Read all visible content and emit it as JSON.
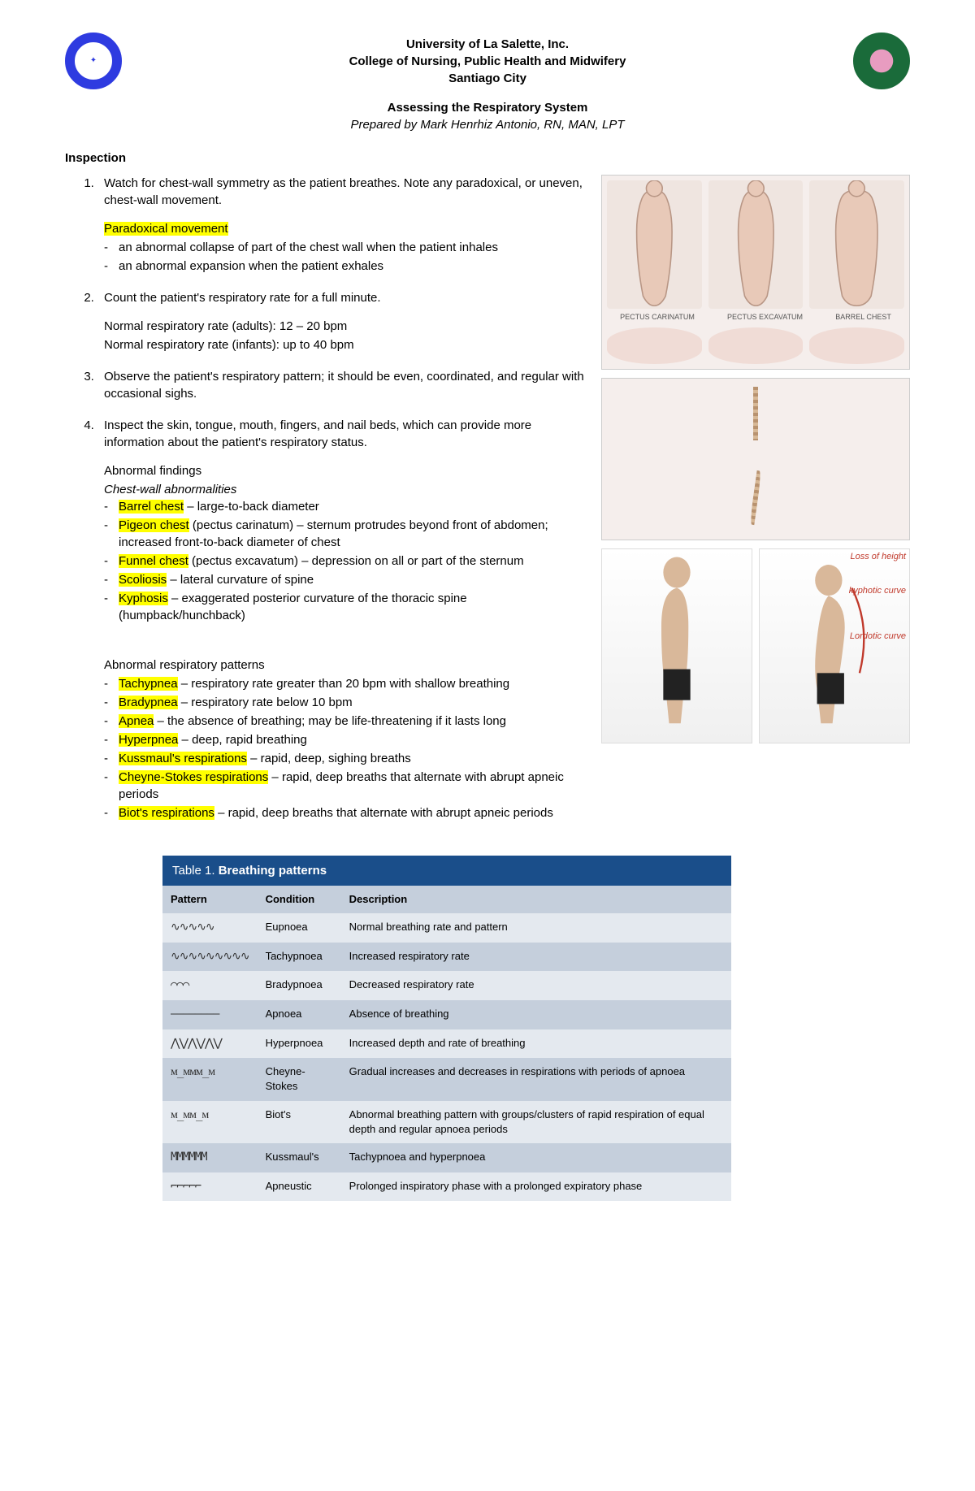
{
  "header": {
    "line1": "University of La Salette, Inc.",
    "line2": "College of Nursing, Public Health and Midwifery",
    "line3": "Santiago City",
    "doc_title": "Assessing the Respiratory System",
    "author": "Prepared by Mark Henrhiz Antonio, RN, MAN, LPT"
  },
  "section_inspection": "Inspection",
  "items": {
    "1": {
      "text": "Watch for chest-wall symmetry as the patient breathes. Note any paradoxical, or uneven, chest-wall movement.",
      "para_hl": "Paradoxical movement",
      "para_b1": "an abnormal collapse of part of the chest wall when the patient inhales",
      "para_b2": "an abnormal  expansion when the patient exhales"
    },
    "2": {
      "text": "Count the patient's respiratory rate for a full minute.",
      "rate1": "Normal respiratory rate (adults): 12 – 20 bpm",
      "rate2": "Normal respiratory rate (infants): up to 40 bpm"
    },
    "3": {
      "text": "Observe the patient's respiratory pattern; it should be even, coordinated, and regular with occasional sighs."
    },
    "4": {
      "text": "Inspect the skin, tongue, mouth, fingers, and nail beds, which can provide more information about the patient's respiratory status.",
      "abn_head": "Abnormal findings",
      "chest_head": "Chest-wall abnormalities",
      "chest": {
        "barrel_hl": "Barrel chest",
        "barrel_t": " – large-to-back diameter",
        "pigeon_hl": "Pigeon chest",
        "pigeon_t": " (pectus carinatum) – sternum protrudes beyond front of abdomen; increased front-to-back diameter of chest",
        "funnel_hl": "Funnel chest",
        "funnel_t": " (pectus excavatum) – depression on all or part of the sternum",
        "scol_hl": "Scoliosis",
        "scol_t": " – lateral curvature of spine",
        "kyph_hl": "Kyphosis",
        "kyph_t": " – exaggerated posterior curvature of the thoracic spine (humpback/hunchback)"
      },
      "resp_head": "Abnormal respiratory patterns",
      "resp": {
        "tachy_hl": "Tachypnea",
        "tachy_t": " – respiratory rate greater than 20 bpm with shallow breathing",
        "brady_hl": "Bradypnea",
        "brady_t": " – respiratory rate below 10 bpm",
        "apnea_hl": "Apnea",
        "apnea_t": " – the absence of breathing; may be life-threatening if it lasts long",
        "hyper_hl": "Hyperpnea",
        "hyper_t": " – deep, rapid breathing",
        "kuss_hl": "Kussmaul's respirations",
        "kuss_t": " – rapid, deep, sighing breaths",
        "cs_hl": "Cheyne-Stokes respirations",
        "cs_t": " – rapid, deep breaths that alternate with abrupt apneic periods",
        "biot_hl": "Biot's respirations",
        "biot_t": " – rapid, deep breaths that alternate with abrupt apneic periods"
      }
    }
  },
  "fig_chest_labels": {
    "a": "PECTUS CARINATUM",
    "b": "PECTUS EXCAVATUM",
    "c": "BARREL CHEST"
  },
  "fig_kyph": {
    "loss": "Loss of height",
    "kyph": "kyphotic curve",
    "lord": "Lordotic curve"
  },
  "table": {
    "title_prefix": "Table 1. ",
    "title_bold": "Breathing patterns",
    "cols": {
      "p": "Pattern",
      "c": "Condition",
      "d": "Description"
    },
    "rows": [
      {
        "wave": "∿∿∿∿∿",
        "cond": "Eupnoea",
        "desc": "Normal breathing rate and pattern"
      },
      {
        "wave": "∿∿∿∿∿∿∿∿∿",
        "cond": "Tachypnoea",
        "desc": "Increased respiratory rate"
      },
      {
        "wave": "⌒⌒⌒",
        "cond": "Bradypnoea",
        "desc": "Decreased respiratory rate"
      },
      {
        "wave": "————————",
        "cond": "Apnoea",
        "desc": "Absence of breathing"
      },
      {
        "wave": "⋀⋁⋀⋁⋀⋁",
        "cond": "Hyperpnoea",
        "desc": "Increased depth and rate of breathing"
      },
      {
        "wave": "ᴍ_ᴍᴍᴍ_ᴍ",
        "cond": "Cheyne-Stokes",
        "desc": "Gradual increases and decreases in respirations with periods of apnoea"
      },
      {
        "wave": "ᴍ_ᴍᴍ_ᴍ",
        "cond": "Biot's",
        "desc": "Abnormal breathing pattern with groups/clusters of rapid respiration of equal depth and regular apnoea periods"
      },
      {
        "wave": "MMMMMM",
        "cond": "Kussmaul's",
        "desc": "Tachypnoea and hyperpnoea"
      },
      {
        "wave": "⌐⌐⌐⌐⌐",
        "cond": "Apneustic",
        "desc": "Prolonged inspiratory phase with a prolonged expiratory phase"
      }
    ]
  },
  "colors": {
    "highlight": "#ffff00",
    "table_header_bg": "#1a4e8a",
    "table_row_light": "#e4e9ef",
    "table_row_dark": "#c5cfdc"
  }
}
